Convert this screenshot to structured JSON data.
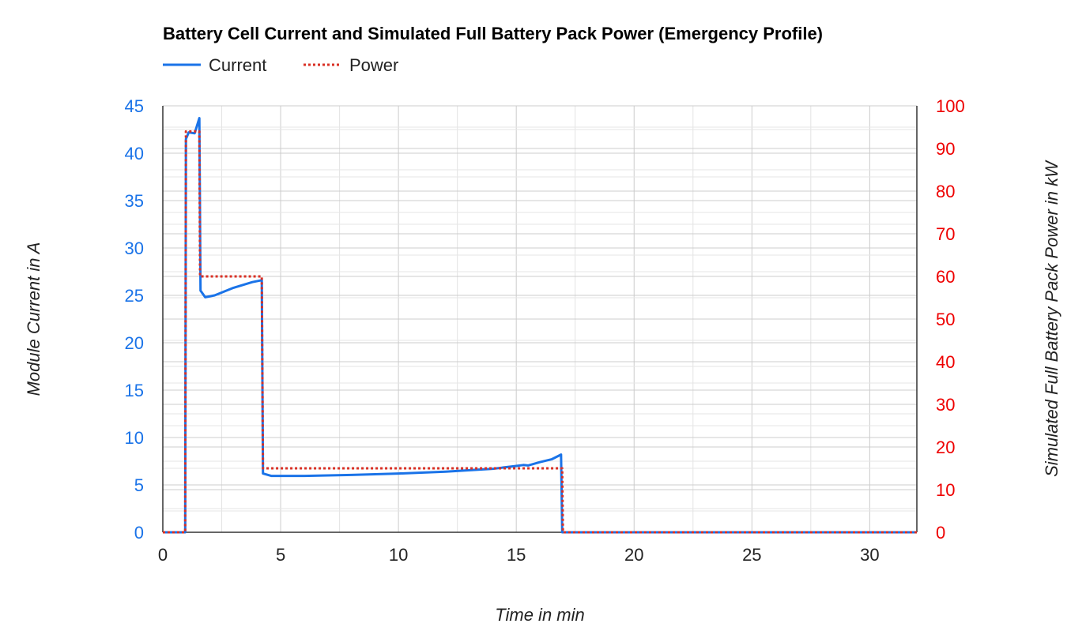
{
  "chart_data": {
    "type": "line",
    "title": "Battery Cell Current and Simulated Full Battery Pack Power (Emergency Profile)",
    "xlabel": "Time in min",
    "ylabel_left": "Module Current in A",
    "ylabel_right": "Simulated Full Battery Pack Power in kW",
    "xlim": [
      0,
      32
    ],
    "ylim_left": [
      0,
      45
    ],
    "ylim_right": [
      0,
      100
    ],
    "x_ticks": [
      0,
      5,
      10,
      15,
      20,
      25,
      30
    ],
    "y_left_ticks": [
      0,
      5,
      10,
      15,
      20,
      25,
      30,
      35,
      40,
      45
    ],
    "y_right_ticks": [
      0,
      10,
      20,
      30,
      40,
      50,
      60,
      70,
      80,
      90,
      100
    ],
    "grid": true,
    "legend_position": "top-left",
    "colors": {
      "current": "#1a73e8",
      "power": "#d93025",
      "left_axis": "#1a73e8",
      "right_axis": "#ee0000"
    },
    "series": [
      {
        "name": "Current",
        "axis": "left",
        "style": "solid",
        "points": [
          [
            0,
            0
          ],
          [
            0.95,
            0
          ],
          [
            0.98,
            41.5
          ],
          [
            1.1,
            42.2
          ],
          [
            1.35,
            42.1
          ],
          [
            1.55,
            43.7
          ],
          [
            1.6,
            25.5
          ],
          [
            1.8,
            24.8
          ],
          [
            2.2,
            25.0
          ],
          [
            3.0,
            25.8
          ],
          [
            3.8,
            26.4
          ],
          [
            4.2,
            26.6
          ],
          [
            4.25,
            6.2
          ],
          [
            4.6,
            5.95
          ],
          [
            6,
            5.95
          ],
          [
            8,
            6.05
          ],
          [
            10,
            6.2
          ],
          [
            12,
            6.4
          ],
          [
            14,
            6.7
          ],
          [
            15,
            7.0
          ],
          [
            15.3,
            7.1
          ],
          [
            15.5,
            7.05
          ],
          [
            16,
            7.4
          ],
          [
            16.5,
            7.7
          ],
          [
            16.9,
            8.2
          ],
          [
            16.95,
            0
          ],
          [
            32,
            0
          ]
        ]
      },
      {
        "name": "Power",
        "axis": "right",
        "style": "dotted",
        "points": [
          [
            0,
            0
          ],
          [
            0.95,
            0
          ],
          [
            0.98,
            94
          ],
          [
            1.55,
            94
          ],
          [
            1.58,
            60
          ],
          [
            4.2,
            60
          ],
          [
            4.25,
            15
          ],
          [
            16.95,
            15
          ],
          [
            16.98,
            0
          ],
          [
            32,
            0
          ]
        ]
      }
    ]
  }
}
